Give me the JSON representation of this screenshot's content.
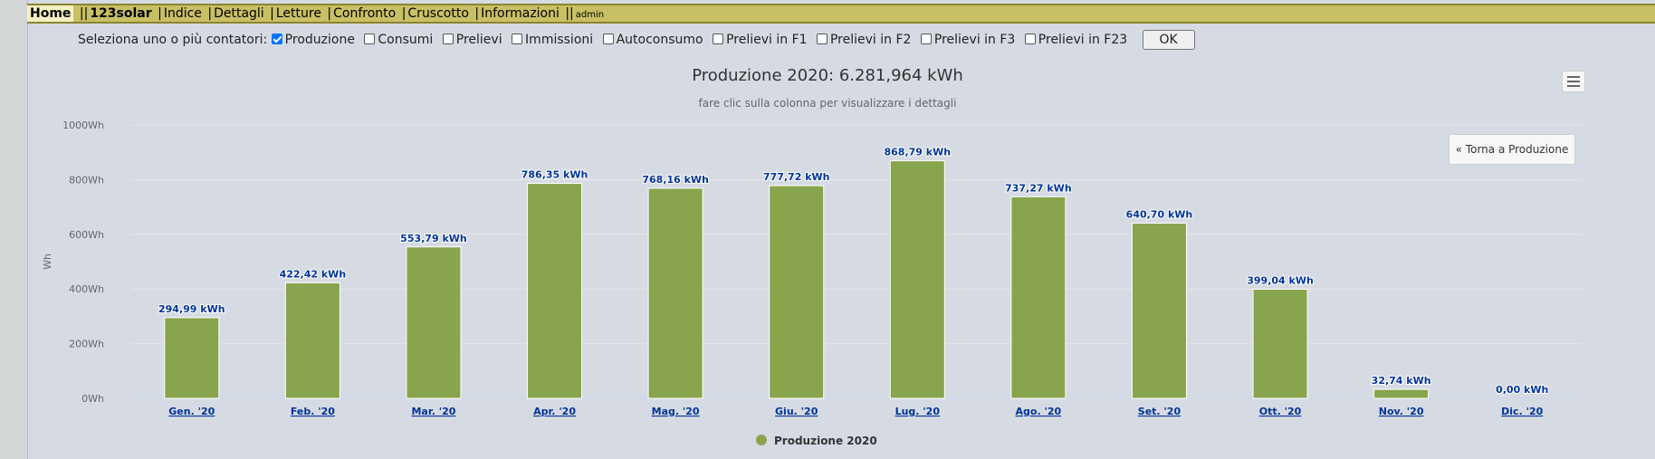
{
  "menu": {
    "home": "Home",
    "sep_double": "||",
    "app": "123solar",
    "items": [
      "Indice",
      "Dettagli",
      "Letture",
      "Confronto",
      "Cruscotto",
      "Informazioni"
    ],
    "user": "admin",
    "sep_single": "|"
  },
  "selector": {
    "prompt": "Seleziona uno o più contatori:",
    "options": [
      {
        "label": "Produzione",
        "checked": true
      },
      {
        "label": "Consumi",
        "checked": false
      },
      {
        "label": "Prelievi",
        "checked": false
      },
      {
        "label": "Immissioni",
        "checked": false
      },
      {
        "label": "Autoconsumo",
        "checked": false
      },
      {
        "label": "Prelievi in F1",
        "checked": false
      },
      {
        "label": "Prelievi in F2",
        "checked": false
      },
      {
        "label": "Prelievi in F3",
        "checked": false
      },
      {
        "label": "Prelievi in F23",
        "checked": false
      }
    ],
    "ok_label": "OK"
  },
  "chart_data": {
    "type": "bar",
    "title": "Produzione 2020: 6.281,964 kWh",
    "subtitle": "fare clic sulla colonna per visualizzare i dettagli",
    "ylabel": "Wh",
    "ylim": [
      0,
      1000
    ],
    "yticks": [
      0,
      200,
      400,
      600,
      800,
      1000
    ],
    "ytick_labels": [
      "0Wh",
      "200Wh",
      "400Wh",
      "600Wh",
      "800Wh",
      "1000Wh"
    ],
    "categories": [
      "Gen. '20",
      "Feb. '20",
      "Mar. '20",
      "Apr. '20",
      "Mag. '20",
      "Giu. '20",
      "Lug. '20",
      "Ago. '20",
      "Set. '20",
      "Ott. '20",
      "Nov. '20",
      "Dic. '20"
    ],
    "series": [
      {
        "name": "Produzione 2020",
        "color": "#88a44c",
        "values": [
          294.99,
          422.42,
          553.79,
          786.35,
          768.16,
          777.72,
          868.79,
          737.27,
          640.7,
          399.04,
          32.74,
          0.0
        ],
        "labels": [
          "294,99 kWh",
          "422,42 kWh",
          "553,79 kWh",
          "786,35 kWh",
          "768,16 kWh",
          "777,72 kWh",
          "868,79 kWh",
          "737,27 kWh",
          "640,70 kWh",
          "399,04 kWh",
          "32,74 kWh",
          "0,00 kWh"
        ]
      }
    ],
    "grid": true,
    "legend": "bottom-center"
  },
  "buttons": {
    "back_label": "« Torna a Produzione",
    "menu_icon": "hamburger-icon"
  }
}
